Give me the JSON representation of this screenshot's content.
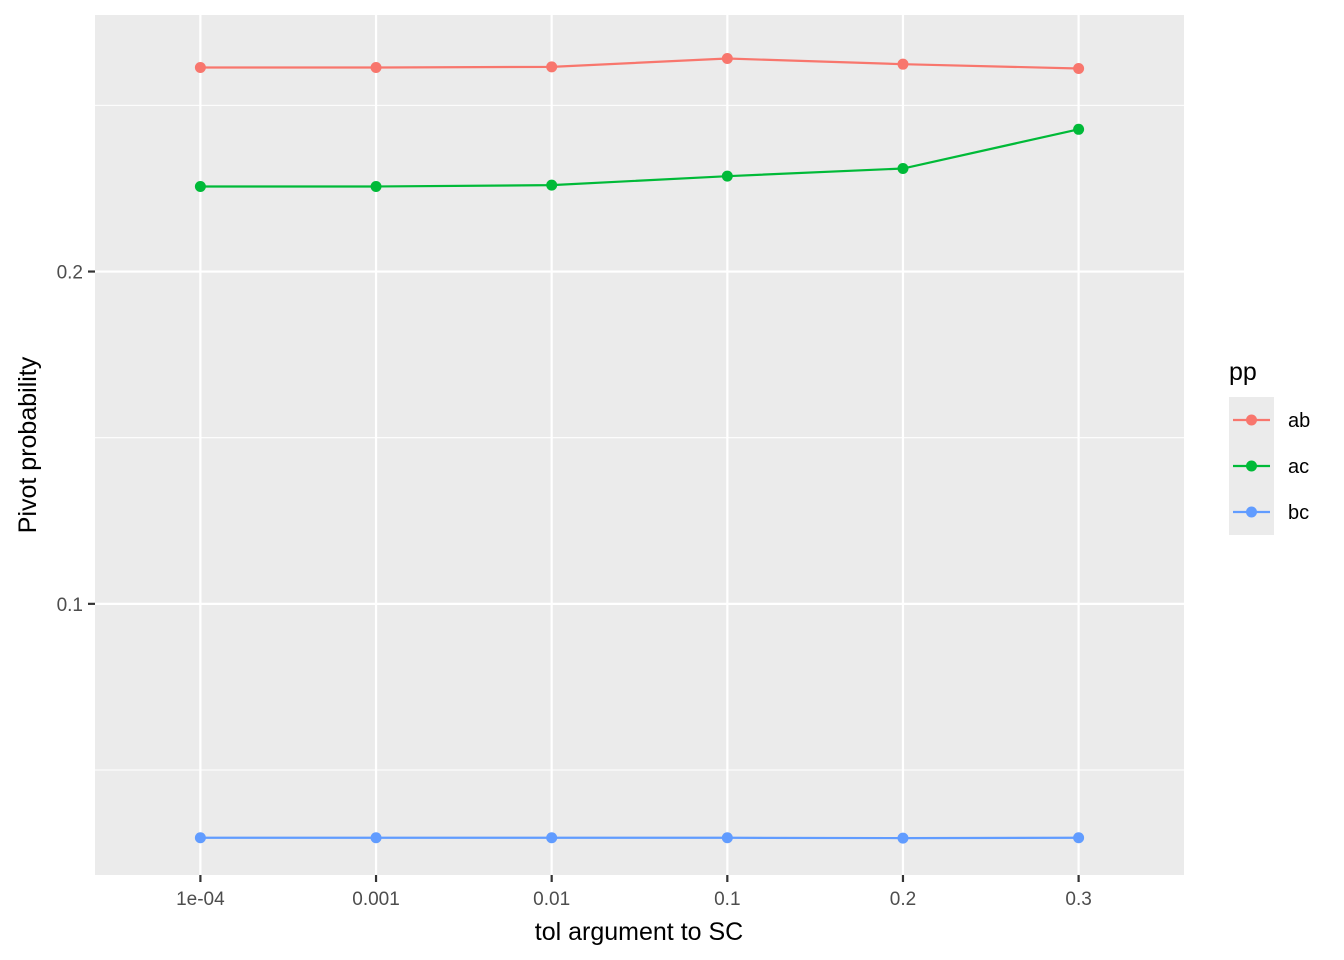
{
  "chart_data": {
    "type": "line",
    "categories": [
      "1e-04",
      "0.001",
      "0.01",
      "0.1",
      "0.2",
      "0.3"
    ],
    "series": [
      {
        "name": "ab",
        "color": "#F8766D",
        "values": [
          0.2614,
          0.2614,
          0.2616,
          0.2641,
          0.2624,
          0.2611
        ]
      },
      {
        "name": "ac",
        "color": "#00BA38",
        "values": [
          0.2256,
          0.2256,
          0.226,
          0.2287,
          0.231,
          0.2428
        ]
      },
      {
        "name": "bc",
        "color": "#619CFF",
        "values": [
          0.0296,
          0.0296,
          0.0296,
          0.0296,
          0.0295,
          0.0296
        ]
      }
    ],
    "xlabel": "tol argument to SC",
    "ylabel": "Pivot probability",
    "yticks": [
      0.1,
      0.2
    ],
    "ytick_labels": [
      "0.1",
      "0.2"
    ],
    "ylim": [
      0.0184,
      0.2772
    ],
    "legend_title": "pp",
    "legend_position": "right",
    "grid": true
  }
}
